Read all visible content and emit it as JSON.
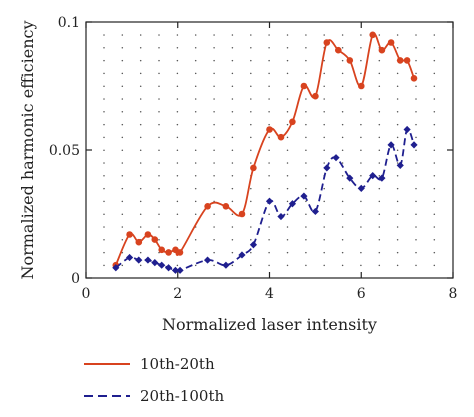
{
  "colors": {
    "series_1": "#d8431f",
    "series_2": "#1f1f8f",
    "axis": "#222222",
    "grid_dot": "#555555"
  },
  "chart_data": {
    "type": "line",
    "xlabel": "Normalized laser intensity",
    "ylabel": "Normalized harmonic efficiency",
    "xlim": [
      0,
      8
    ],
    "ylim": [
      0,
      0.1
    ],
    "x_ticks": [
      0,
      2,
      4,
      6,
      8
    ],
    "x_tick_labels": [
      "0",
      "2",
      "4",
      "6",
      "8"
    ],
    "y_ticks": [
      0,
      0.05,
      0.1
    ],
    "y_tick_labels": [
      "0",
      "0.05",
      "0.1"
    ],
    "grid": "dotted",
    "legend_position": "below",
    "series": [
      {
        "name": "10th-20th",
        "line_style": "solid",
        "marker": "circle",
        "color": "#d8431f",
        "x": [
          0.65,
          0.95,
          1.15,
          1.35,
          1.5,
          1.65,
          1.8,
          1.95,
          2.05,
          2.65,
          3.05,
          3.4,
          3.65,
          4.0,
          4.25,
          4.5,
          4.75,
          5.0,
          5.25,
          5.5,
          5.75,
          6.0,
          6.25,
          6.45,
          6.65,
          6.85,
          7.0,
          7.15
        ],
        "y": [
          0.005,
          0.017,
          0.014,
          0.017,
          0.015,
          0.011,
          0.01,
          0.011,
          0.01,
          0.028,
          0.028,
          0.025,
          0.043,
          0.058,
          0.055,
          0.061,
          0.075,
          0.071,
          0.092,
          0.089,
          0.085,
          0.075,
          0.095,
          0.089,
          0.092,
          0.085,
          0.085,
          0.078
        ]
      },
      {
        "name": "20th-100th",
        "line_style": "dashed",
        "marker": "diamond",
        "color": "#1f1f8f",
        "x": [
          0.65,
          0.95,
          1.15,
          1.35,
          1.5,
          1.65,
          1.8,
          1.95,
          2.05,
          2.65,
          3.05,
          3.4,
          3.65,
          4.0,
          4.25,
          4.5,
          4.75,
          5.0,
          5.25,
          5.45,
          5.75,
          6.0,
          6.25,
          6.45,
          6.65,
          6.85,
          7.0,
          7.15
        ],
        "y": [
          0.004,
          0.008,
          0.007,
          0.007,
          0.006,
          0.005,
          0.004,
          0.003,
          0.003,
          0.007,
          0.005,
          0.009,
          0.013,
          0.03,
          0.024,
          0.029,
          0.032,
          0.026,
          0.043,
          0.047,
          0.039,
          0.035,
          0.04,
          0.039,
          0.052,
          0.044,
          0.058,
          0.052
        ]
      }
    ]
  }
}
